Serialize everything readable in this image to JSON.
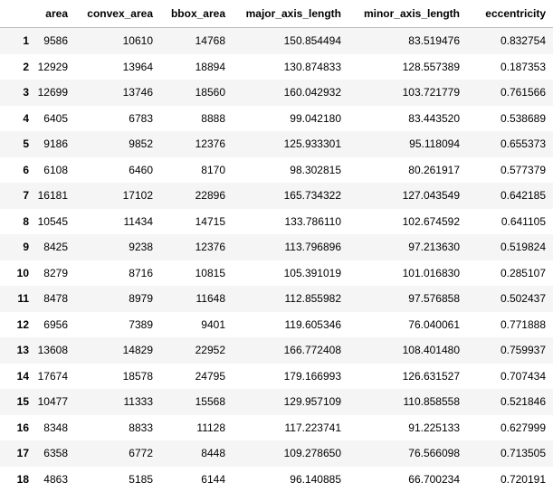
{
  "table": {
    "columns": [
      "area",
      "convex_area",
      "bbox_area",
      "major_axis_length",
      "minor_axis_length",
      "eccentricity"
    ],
    "rows": [
      {
        "index": "1",
        "cells": [
          "9586",
          "10610",
          "14768",
          "150.854494",
          "83.519476",
          "0.832754"
        ]
      },
      {
        "index": "2",
        "cells": [
          "12929",
          "13964",
          "18894",
          "130.874833",
          "128.557389",
          "0.187353"
        ]
      },
      {
        "index": "3",
        "cells": [
          "12699",
          "13746",
          "18560",
          "160.042932",
          "103.721779",
          "0.761566"
        ]
      },
      {
        "index": "4",
        "cells": [
          "6405",
          "6783",
          "8888",
          "99.042180",
          "83.443520",
          "0.538689"
        ]
      },
      {
        "index": "5",
        "cells": [
          "9186",
          "9852",
          "12376",
          "125.933301",
          "95.118094",
          "0.655373"
        ]
      },
      {
        "index": "6",
        "cells": [
          "6108",
          "6460",
          "8170",
          "98.302815",
          "80.261917",
          "0.577379"
        ]
      },
      {
        "index": "7",
        "cells": [
          "16181",
          "17102",
          "22896",
          "165.734322",
          "127.043549",
          "0.642185"
        ]
      },
      {
        "index": "8",
        "cells": [
          "10545",
          "11434",
          "14715",
          "133.786110",
          "102.674592",
          "0.641105"
        ]
      },
      {
        "index": "9",
        "cells": [
          "8425",
          "9238",
          "12376",
          "113.796896",
          "97.213630",
          "0.519824"
        ]
      },
      {
        "index": "10",
        "cells": [
          "8279",
          "8716",
          "10815",
          "105.391019",
          "101.016830",
          "0.285107"
        ]
      },
      {
        "index": "11",
        "cells": [
          "8478",
          "8979",
          "11648",
          "112.855982",
          "97.576858",
          "0.502437"
        ]
      },
      {
        "index": "12",
        "cells": [
          "6956",
          "7389",
          "9401",
          "119.605346",
          "76.040061",
          "0.771888"
        ]
      },
      {
        "index": "13",
        "cells": [
          "13608",
          "14829",
          "22952",
          "166.772408",
          "108.401480",
          "0.759937"
        ]
      },
      {
        "index": "14",
        "cells": [
          "17674",
          "18578",
          "24795",
          "179.166993",
          "126.631527",
          "0.707434"
        ]
      },
      {
        "index": "15",
        "cells": [
          "10477",
          "11333",
          "15568",
          "129.957109",
          "110.858558",
          "0.521846"
        ]
      },
      {
        "index": "16",
        "cells": [
          "8348",
          "8833",
          "11128",
          "117.223741",
          "91.225133",
          "0.627999"
        ]
      },
      {
        "index": "17",
        "cells": [
          "6358",
          "6772",
          "8448",
          "109.278650",
          "76.566098",
          "0.713505"
        ]
      },
      {
        "index": "18",
        "cells": [
          "4863",
          "5185",
          "6144",
          "96.140885",
          "66.700234",
          "0.720191"
        ]
      }
    ]
  }
}
